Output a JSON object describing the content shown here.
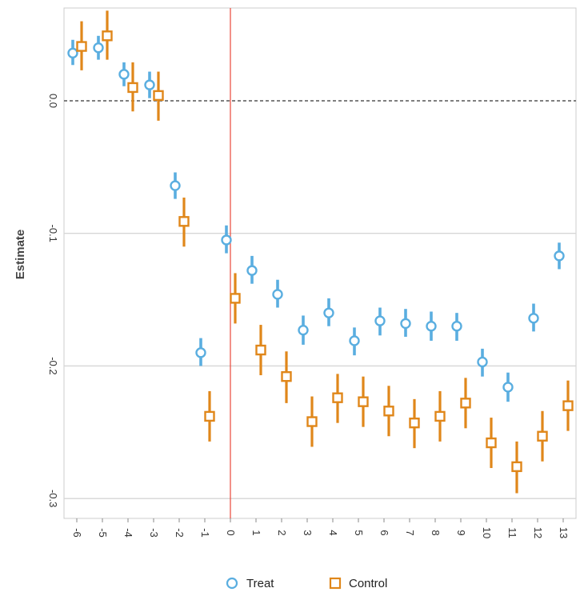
{
  "chart_data": {
    "type": "scatter",
    "title": "",
    "xlabel": "",
    "ylabel": "Estimate",
    "x": [
      -6,
      -5,
      -4,
      -3,
      -2,
      -1,
      0,
      1,
      2,
      3,
      4,
      5,
      6,
      7,
      8,
      9,
      10,
      11,
      12,
      13
    ],
    "x_tick_labels": [
      "-6",
      "-5",
      "-4",
      "-3",
      "-2",
      "-1",
      "0",
      "1",
      "2",
      "3",
      "4",
      "5",
      "6",
      "7",
      "8",
      "9",
      "10",
      "11",
      "12",
      "13"
    ],
    "y_ticks": [
      0.0,
      -0.1,
      -0.2,
      -0.3
    ],
    "y_tick_labels": [
      "0.0",
      "-0.1",
      "-0.2",
      "-0.3"
    ],
    "ylim": [
      -0.315,
      0.07
    ],
    "xlim": [
      -6.5,
      13.5
    ],
    "grid": true,
    "reference_lines": {
      "horizontal_dashed_y": 0.0,
      "vertical_x": 0
    },
    "legend_position": "bottom",
    "series": [
      {
        "name": "Treat",
        "marker": "circle",
        "color": "#5aaee0",
        "points": [
          {
            "x": -6,
            "estimate": 0.036,
            "low": 0.027,
            "high": 0.046
          },
          {
            "x": -5,
            "estimate": 0.04,
            "low": 0.031,
            "high": 0.049
          },
          {
            "x": -4,
            "estimate": 0.02,
            "low": 0.011,
            "high": 0.029
          },
          {
            "x": -3,
            "estimate": 0.012,
            "low": 0.002,
            "high": 0.022
          },
          {
            "x": -2,
            "estimate": -0.064,
            "low": -0.074,
            "high": -0.054
          },
          {
            "x": -1,
            "estimate": -0.19,
            "low": -0.2,
            "high": -0.179
          },
          {
            "x": 0,
            "estimate": -0.105,
            "low": -0.115,
            "high": -0.094
          },
          {
            "x": 1,
            "estimate": -0.128,
            "low": -0.138,
            "high": -0.117
          },
          {
            "x": 2,
            "estimate": -0.146,
            "low": -0.156,
            "high": -0.135
          },
          {
            "x": 3,
            "estimate": -0.173,
            "low": -0.184,
            "high": -0.162
          },
          {
            "x": 4,
            "estimate": -0.16,
            "low": -0.17,
            "high": -0.149
          },
          {
            "x": 5,
            "estimate": -0.181,
            "low": -0.192,
            "high": -0.171
          },
          {
            "x": 6,
            "estimate": -0.166,
            "low": -0.177,
            "high": -0.156
          },
          {
            "x": 7,
            "estimate": -0.168,
            "low": -0.178,
            "high": -0.157
          },
          {
            "x": 8,
            "estimate": -0.17,
            "low": -0.181,
            "high": -0.159
          },
          {
            "x": 9,
            "estimate": -0.17,
            "low": -0.181,
            "high": -0.16
          },
          {
            "x": 10,
            "estimate": -0.197,
            "low": -0.208,
            "high": -0.187
          },
          {
            "x": 11,
            "estimate": -0.216,
            "low": -0.227,
            "high": -0.205
          },
          {
            "x": 12,
            "estimate": -0.164,
            "low": -0.174,
            "high": -0.153
          },
          {
            "x": 13,
            "estimate": -0.117,
            "low": -0.127,
            "high": -0.107
          }
        ]
      },
      {
        "name": "Control",
        "marker": "square",
        "color": "#e0871a",
        "points": [
          {
            "x": -6,
            "estimate": 0.041,
            "low": 0.023,
            "high": 0.06
          },
          {
            "x": -5,
            "estimate": 0.049,
            "low": 0.031,
            "high": 0.068
          },
          {
            "x": -4,
            "estimate": 0.01,
            "low": -0.008,
            "high": 0.029
          },
          {
            "x": -3,
            "estimate": 0.004,
            "low": -0.015,
            "high": 0.022
          },
          {
            "x": -2,
            "estimate": -0.091,
            "low": -0.11,
            "high": -0.073
          },
          {
            "x": -1,
            "estimate": -0.238,
            "low": -0.257,
            "high": -0.219
          },
          {
            "x": 0,
            "estimate": -0.149,
            "low": -0.168,
            "high": -0.13
          },
          {
            "x": 1,
            "estimate": -0.188,
            "low": -0.207,
            "high": -0.169
          },
          {
            "x": 2,
            "estimate": -0.208,
            "low": -0.228,
            "high": -0.189
          },
          {
            "x": 3,
            "estimate": -0.242,
            "low": -0.261,
            "high": -0.223
          },
          {
            "x": 4,
            "estimate": -0.224,
            "low": -0.243,
            "high": -0.206
          },
          {
            "x": 5,
            "estimate": -0.227,
            "low": -0.246,
            "high": -0.208
          },
          {
            "x": 6,
            "estimate": -0.234,
            "low": -0.253,
            "high": -0.215
          },
          {
            "x": 7,
            "estimate": -0.243,
            "low": -0.262,
            "high": -0.225
          },
          {
            "x": 8,
            "estimate": -0.238,
            "low": -0.257,
            "high": -0.219
          },
          {
            "x": 9,
            "estimate": -0.228,
            "low": -0.247,
            "high": -0.209
          },
          {
            "x": 10,
            "estimate": -0.258,
            "low": -0.277,
            "high": -0.239
          },
          {
            "x": 11,
            "estimate": -0.276,
            "low": -0.296,
            "high": -0.257
          },
          {
            "x": 12,
            "estimate": -0.253,
            "low": -0.272,
            "high": -0.234
          },
          {
            "x": 13,
            "estimate": -0.23,
            "low": -0.249,
            "high": -0.211
          }
        ]
      }
    ],
    "colors": {
      "vertical_line": "#e8483a",
      "zero_line": "#555555",
      "grid": "#d6d6d6",
      "frame": "#cccccc"
    }
  },
  "legend": {
    "items": [
      {
        "label": "Treat",
        "icon": "circle-icon",
        "color": "#5aaee0"
      },
      {
        "label": "Control",
        "icon": "square-icon",
        "color": "#e0871a"
      }
    ]
  }
}
